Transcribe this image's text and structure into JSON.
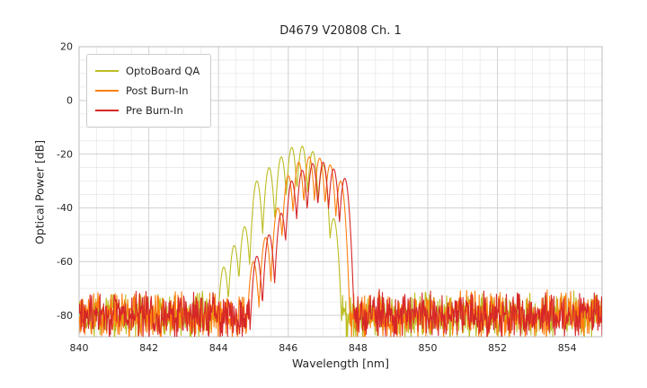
{
  "title": "D4679 V20808 Ch. 1",
  "chart_data": {
    "type": "line",
    "title": "D4679 V20808 Ch. 1",
    "xlabel": "Wavelength [nm]",
    "ylabel": "Optical Power [dB]",
    "xlim": [
      840,
      855
    ],
    "ylim": [
      -88,
      20
    ],
    "xticks": [
      840,
      842,
      844,
      846,
      848,
      850,
      852,
      854
    ],
    "yticks": [
      20,
      0,
      -20,
      -40,
      -60,
      -80
    ],
    "grid": true,
    "minor_grid_step_x_nm": 0.5,
    "minor_grid_step_y_dB": 5,
    "legend_position": "upper-left",
    "noise_floor_dB": -80,
    "noise_peak_to_peak_dB": 16,
    "mode_valley_depth_dB": 22,
    "mode_half_width_nm": 0.175,
    "sample_step_nm": 0.015,
    "series": [
      {
        "name": "OptoBoard QA",
        "color": "#bcbd22",
        "seed": 7,
        "modes": [
          [
            844.15,
            -62
          ],
          [
            844.45,
            -54
          ],
          [
            844.75,
            -47
          ],
          [
            845.1,
            -30
          ],
          [
            845.45,
            -25
          ],
          [
            845.8,
            -21
          ],
          [
            846.1,
            -17.5
          ],
          [
            846.4,
            -17
          ],
          [
            846.7,
            -19
          ],
          [
            847.0,
            -24
          ],
          [
            847.3,
            -44
          ]
        ]
      },
      {
        "name": "Post Burn-In",
        "color": "#ff7f0e",
        "seed": 13,
        "modes": [
          [
            845.0,
            -60
          ],
          [
            845.35,
            -51
          ],
          [
            845.7,
            -40
          ],
          [
            846.0,
            -28
          ],
          [
            846.3,
            -23
          ],
          [
            846.6,
            -21
          ],
          [
            846.9,
            -21.5
          ],
          [
            847.2,
            -24
          ],
          [
            847.5,
            -30
          ]
        ]
      },
      {
        "name": "Pre Burn-In",
        "color": "#d62728",
        "seed": 29,
        "modes": [
          [
            845.1,
            -58
          ],
          [
            845.45,
            -50
          ],
          [
            845.8,
            -42
          ],
          [
            846.1,
            -30
          ],
          [
            846.4,
            -26
          ],
          [
            846.7,
            -23.5
          ],
          [
            847.0,
            -23
          ],
          [
            847.3,
            -25.5
          ],
          [
            847.62,
            -29
          ]
        ]
      }
    ]
  }
}
